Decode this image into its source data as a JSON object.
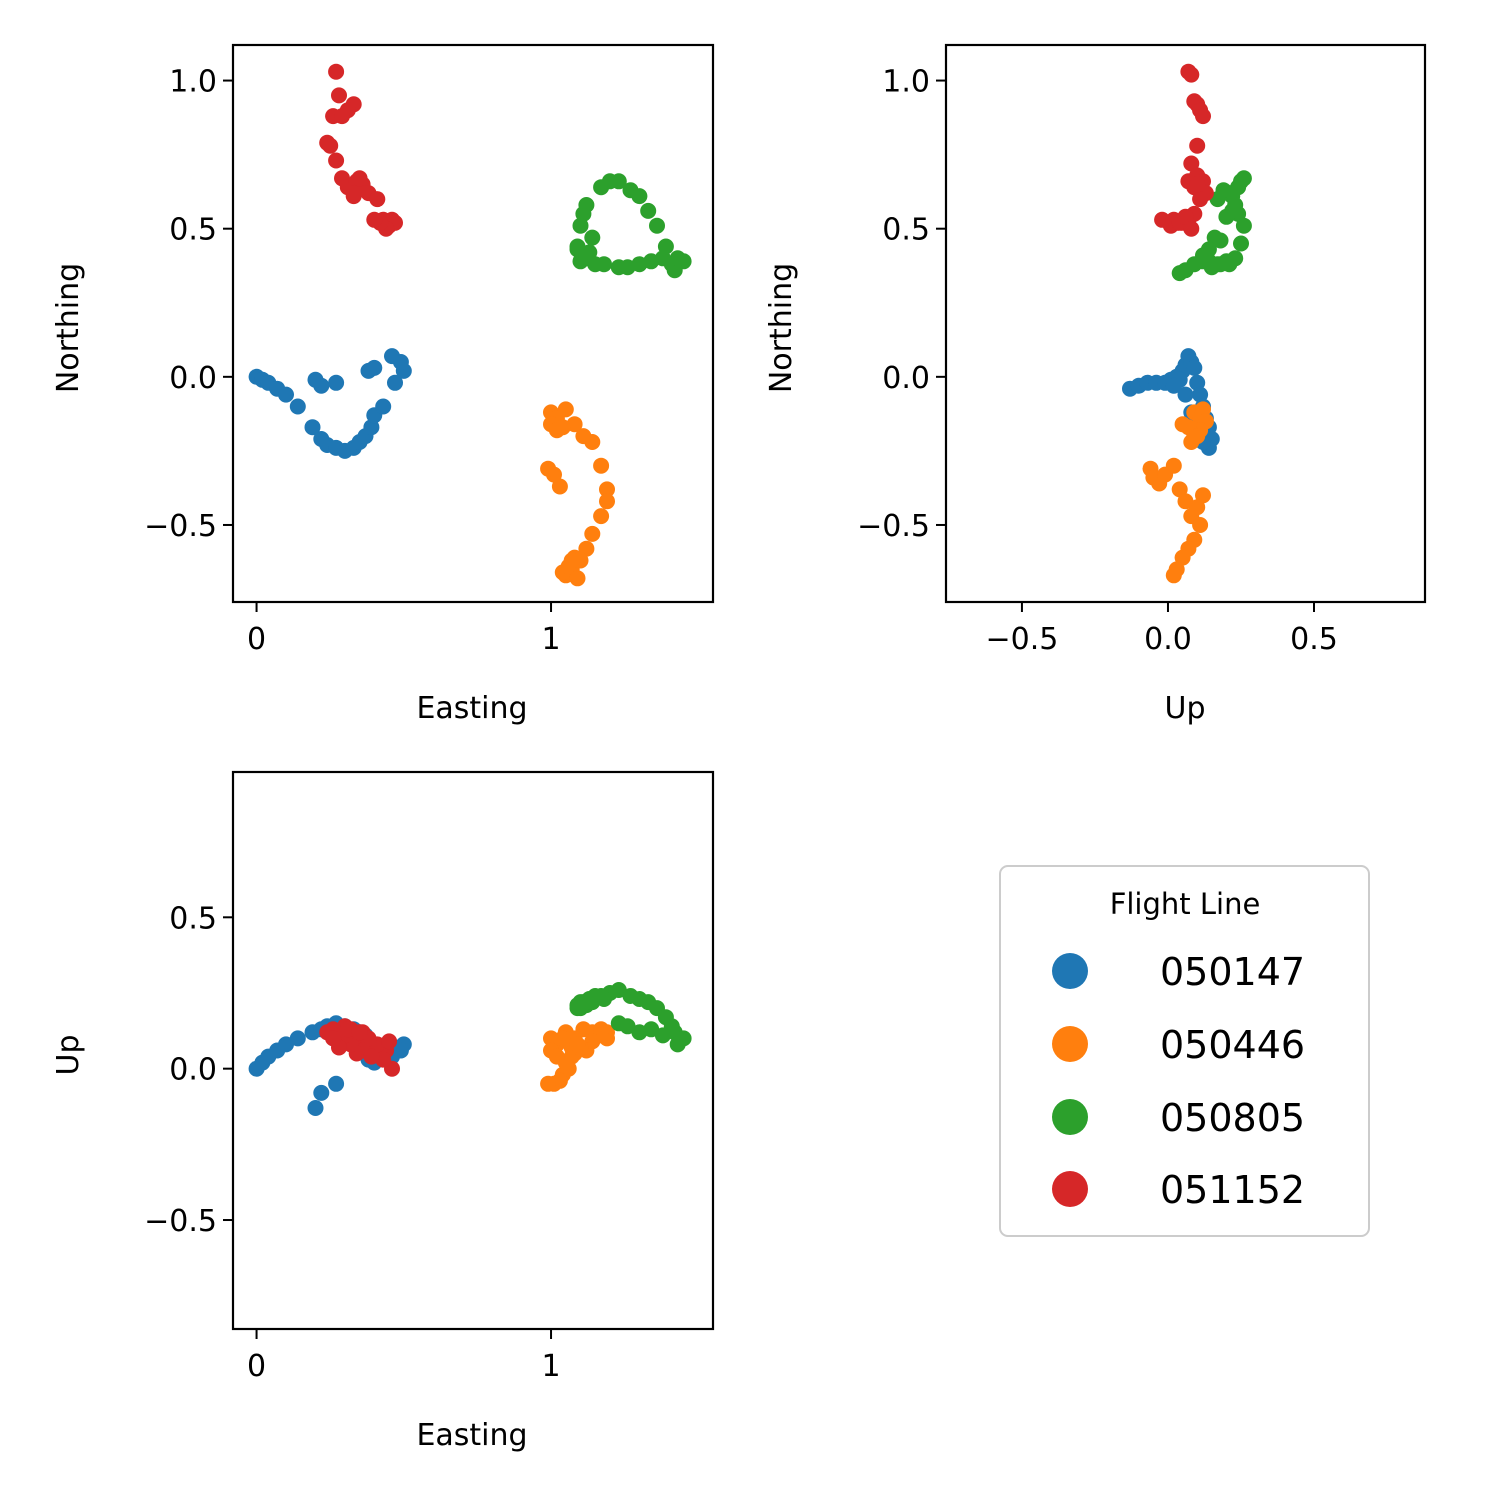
{
  "chart_data": [
    {
      "type": "scatter",
      "title": "",
      "xlabel": "Easting",
      "ylabel": "Northing",
      "xlim": [
        -0.08,
        1.55
      ],
      "ylim": [
        -0.76,
        1.12
      ],
      "xticks": [
        0,
        1
      ],
      "xtick_labels": [
        "0",
        "1"
      ],
      "yticks": [
        -0.5,
        0.0,
        0.5,
        1.0
      ],
      "ytick_labels": [
        "−0.5",
        "0.0",
        "0.5",
        "1.0"
      ],
      "grid": false,
      "series": [
        {
          "name": "050147",
          "color": "#1f77b4",
          "x": [
            0.0,
            0.02,
            0.04,
            0.07,
            0.1,
            0.14,
            0.19,
            0.22,
            0.24,
            0.27,
            0.3,
            0.33,
            0.35,
            0.37,
            0.39,
            0.4,
            0.43,
            0.47,
            0.5,
            0.49,
            0.46,
            0.4,
            0.38,
            0.27,
            0.22,
            0.2
          ],
          "y": [
            0.0,
            -0.01,
            -0.02,
            -0.04,
            -0.06,
            -0.1,
            -0.17,
            -0.21,
            -0.23,
            -0.24,
            -0.25,
            -0.24,
            -0.22,
            -0.2,
            -0.17,
            -0.13,
            -0.1,
            -0.02,
            0.02,
            0.05,
            0.07,
            0.03,
            0.02,
            -0.02,
            -0.03,
            -0.01
          ]
        },
        {
          "name": "050446",
          "color": "#ff7f0e",
          "x": [
            1.0,
            1.02,
            1.05,
            1.08,
            1.11,
            1.14,
            1.17,
            1.19,
            1.19,
            1.17,
            1.14,
            1.12,
            1.1,
            1.07,
            1.05,
            1.04,
            1.06,
            1.08,
            1.03,
            1.01,
            0.99,
            1.0,
            1.02,
            1.04,
            1.07,
            1.09
          ],
          "y": [
            -0.12,
            -0.14,
            -0.11,
            -0.16,
            -0.2,
            -0.22,
            -0.3,
            -0.38,
            -0.42,
            -0.47,
            -0.53,
            -0.58,
            -0.62,
            -0.65,
            -0.67,
            -0.66,
            -0.64,
            -0.61,
            -0.37,
            -0.33,
            -0.31,
            -0.16,
            -0.18,
            -0.17,
            -0.62,
            -0.68
          ]
        },
        {
          "name": "050805",
          "color": "#2ca02c",
          "x": [
            1.11,
            1.12,
            1.09,
            1.1,
            1.13,
            1.17,
            1.2,
            1.23,
            1.27,
            1.3,
            1.33,
            1.36,
            1.39,
            1.41,
            1.42,
            1.45,
            1.43,
            1.38,
            1.34,
            1.3,
            1.26,
            1.23,
            1.18,
            1.15,
            1.12,
            1.09,
            1.1,
            1.14
          ],
          "y": [
            0.55,
            0.58,
            0.44,
            0.39,
            0.42,
            0.64,
            0.66,
            0.66,
            0.63,
            0.61,
            0.56,
            0.51,
            0.44,
            0.38,
            0.36,
            0.39,
            0.4,
            0.4,
            0.39,
            0.38,
            0.37,
            0.37,
            0.38,
            0.38,
            0.4,
            0.43,
            0.51,
            0.47
          ]
        },
        {
          "name": "051152",
          "color": "#d62728",
          "x": [
            0.27,
            0.28,
            0.26,
            0.24,
            0.25,
            0.27,
            0.29,
            0.31,
            0.33,
            0.34,
            0.36,
            0.38,
            0.41,
            0.43,
            0.45,
            0.46,
            0.47,
            0.44,
            0.42,
            0.4,
            0.35,
            0.33,
            0.31,
            0.29,
            0.33
          ],
          "y": [
            1.03,
            0.95,
            0.88,
            0.79,
            0.78,
            0.73,
            0.67,
            0.64,
            0.61,
            0.66,
            0.65,
            0.62,
            0.6,
            0.53,
            0.51,
            0.53,
            0.52,
            0.5,
            0.52,
            0.53,
            0.67,
            0.92,
            0.9,
            0.88,
            0.62
          ]
        }
      ]
    },
    {
      "type": "scatter",
      "title": "",
      "xlabel": "Up",
      "ylabel": "Northing",
      "xlim": [
        -0.76,
        0.88
      ],
      "ylim": [
        -0.76,
        1.12
      ],
      "xticks": [
        -0.5,
        0.0,
        0.5
      ],
      "xtick_labels": [
        "−0.5",
        "0.0",
        "0.5"
      ],
      "yticks": [
        -0.5,
        0.0,
        0.5,
        1.0
      ],
      "ytick_labels": [
        "−0.5",
        "0.0",
        "0.5",
        "1.0"
      ],
      "grid": false,
      "series": [
        {
          "name": "050147",
          "color": "#1f77b4",
          "x": [
            -0.13,
            -0.1,
            -0.07,
            -0.04,
            -0.01,
            0.01,
            0.03,
            0.05,
            0.06,
            0.07,
            0.08,
            0.09,
            0.1,
            0.11,
            0.12,
            0.13,
            0.14,
            0.15,
            0.14,
            0.12,
            0.1,
            0.09,
            0.08,
            0.06,
            0.04,
            0.02
          ],
          "y": [
            -0.04,
            -0.03,
            -0.02,
            -0.02,
            -0.02,
            -0.01,
            0.0,
            0.02,
            0.04,
            0.07,
            0.05,
            0.03,
            -0.02,
            -0.06,
            -0.1,
            -0.14,
            -0.17,
            -0.21,
            -0.24,
            -0.22,
            -0.19,
            -0.15,
            -0.12,
            -0.06,
            -0.01,
            -0.03
          ]
        },
        {
          "name": "050446",
          "color": "#ff7f0e",
          "x": [
            0.09,
            0.11,
            0.12,
            0.13,
            0.11,
            0.09,
            0.07,
            0.05,
            0.08,
            0.1,
            -0.06,
            -0.05,
            -0.03,
            -0.01,
            0.02,
            0.04,
            0.06,
            0.08,
            0.1,
            0.12,
            0.11,
            0.09,
            0.07,
            0.05,
            0.03,
            0.02
          ],
          "y": [
            -0.12,
            -0.14,
            -0.11,
            -0.15,
            -0.18,
            -0.2,
            -0.17,
            -0.16,
            -0.22,
            -0.2,
            -0.31,
            -0.34,
            -0.36,
            -0.33,
            -0.3,
            -0.38,
            -0.42,
            -0.47,
            -0.44,
            -0.4,
            -0.5,
            -0.55,
            -0.58,
            -0.61,
            -0.65,
            -0.67
          ]
        },
        {
          "name": "050805",
          "color": "#2ca02c",
          "x": [
            0.04,
            0.06,
            0.09,
            0.12,
            0.15,
            0.18,
            0.21,
            0.23,
            0.25,
            0.26,
            0.24,
            0.22,
            0.2,
            0.18,
            0.16,
            0.14,
            0.12,
            0.14,
            0.17,
            0.2,
            0.22,
            0.24,
            0.25,
            0.21,
            0.19,
            0.17,
            0.23,
            0.26
          ],
          "y": [
            0.35,
            0.36,
            0.38,
            0.39,
            0.37,
            0.38,
            0.38,
            0.4,
            0.45,
            0.51,
            0.55,
            0.56,
            0.54,
            0.46,
            0.47,
            0.43,
            0.41,
            0.39,
            0.38,
            0.39,
            0.61,
            0.64,
            0.66,
            0.62,
            0.63,
            0.6,
            0.58,
            0.67
          ]
        },
        {
          "name": "051152",
          "color": "#d62728",
          "x": [
            0.07,
            0.08,
            0.09,
            0.1,
            0.11,
            0.12,
            0.1,
            0.08,
            0.07,
            0.09,
            0.1,
            0.12,
            0.13,
            0.11,
            0.09,
            0.07,
            0.05,
            0.03,
            0.01,
            -0.02,
            0.02,
            0.04,
            0.06,
            0.08,
            0.1
          ],
          "y": [
            1.03,
            1.02,
            0.93,
            0.92,
            0.9,
            0.88,
            0.78,
            0.72,
            0.66,
            0.64,
            0.68,
            0.66,
            0.62,
            0.6,
            0.55,
            0.53,
            0.52,
            0.52,
            0.51,
            0.53,
            0.53,
            0.52,
            0.54,
            0.5,
            0.65
          ]
        }
      ]
    },
    {
      "type": "scatter",
      "title": "",
      "xlabel": "Easting",
      "ylabel": "Up",
      "xlim": [
        -0.08,
        1.55
      ],
      "ylim": [
        -0.86,
        0.98
      ],
      "xticks": [
        0,
        1
      ],
      "xtick_labels": [
        "0",
        "1"
      ],
      "yticks": [
        -0.5,
        0.0,
        0.5
      ],
      "ytick_labels": [
        "−0.5",
        "0.0",
        "0.5"
      ],
      "grid": false,
      "series": [
        {
          "name": "050147",
          "color": "#1f77b4",
          "x": [
            0.0,
            0.02,
            0.04,
            0.07,
            0.1,
            0.14,
            0.19,
            0.22,
            0.24,
            0.27,
            0.3,
            0.33,
            0.35,
            0.37,
            0.39,
            0.4,
            0.43,
            0.47,
            0.5,
            0.49,
            0.46,
            0.4,
            0.38,
            0.27,
            0.22,
            0.2
          ],
          "y": [
            0.0,
            0.02,
            0.04,
            0.06,
            0.08,
            0.1,
            0.12,
            0.13,
            0.14,
            0.15,
            0.14,
            0.13,
            0.12,
            0.11,
            0.08,
            0.04,
            0.05,
            0.07,
            0.08,
            0.06,
            0.04,
            0.02,
            0.03,
            -0.05,
            -0.08,
            -0.13
          ]
        },
        {
          "name": "050446",
          "color": "#ff7f0e",
          "x": [
            1.0,
            1.02,
            1.05,
            1.08,
            1.11,
            1.14,
            1.17,
            1.19,
            1.19,
            1.17,
            1.14,
            1.12,
            1.1,
            1.07,
            1.05,
            1.04,
            1.06,
            1.08,
            1.03,
            1.01,
            0.99,
            1.0,
            1.02,
            1.04,
            1.07,
            1.09
          ],
          "y": [
            0.1,
            0.08,
            0.12,
            0.1,
            0.13,
            0.12,
            0.13,
            0.1,
            0.12,
            0.11,
            0.09,
            0.06,
            0.07,
            0.04,
            0.02,
            -0.02,
            0.0,
            0.05,
            -0.04,
            -0.05,
            -0.05,
            0.06,
            0.04,
            0.1,
            0.07,
            0.08
          ]
        },
        {
          "name": "050805",
          "color": "#2ca02c",
          "x": [
            1.11,
            1.12,
            1.09,
            1.1,
            1.13,
            1.17,
            1.2,
            1.23,
            1.27,
            1.3,
            1.33,
            1.36,
            1.39,
            1.41,
            1.42,
            1.45,
            1.43,
            1.38,
            1.34,
            1.3,
            1.26,
            1.23,
            1.18,
            1.15,
            1.12,
            1.09,
            1.1,
            1.14
          ],
          "y": [
            0.22,
            0.21,
            0.2,
            0.22,
            0.23,
            0.24,
            0.25,
            0.26,
            0.24,
            0.23,
            0.22,
            0.2,
            0.17,
            0.14,
            0.12,
            0.1,
            0.08,
            0.11,
            0.13,
            0.12,
            0.14,
            0.15,
            0.23,
            0.24,
            0.22,
            0.21,
            0.2,
            0.22
          ]
        },
        {
          "name": "051152",
          "color": "#d62728",
          "x": [
            0.24,
            0.26,
            0.28,
            0.3,
            0.32,
            0.34,
            0.36,
            0.38,
            0.4,
            0.42,
            0.44,
            0.46,
            0.43,
            0.41,
            0.38,
            0.36,
            0.34,
            0.32,
            0.3,
            0.28,
            0.26,
            0.31,
            0.35,
            0.39,
            0.45
          ],
          "y": [
            0.12,
            0.13,
            0.11,
            0.14,
            0.13,
            0.1,
            0.12,
            0.09,
            0.07,
            0.05,
            0.06,
            0.0,
            0.03,
            0.08,
            0.1,
            0.06,
            0.05,
            0.08,
            0.11,
            0.07,
            0.1,
            0.13,
            0.12,
            0.04,
            0.09
          ]
        }
      ]
    }
  ],
  "legend": {
    "title": "Flight Line",
    "placement": "bottom-right",
    "entries": [
      {
        "label": "050147",
        "color": "#1f77b4"
      },
      {
        "label": "050446",
        "color": "#ff7f0e"
      },
      {
        "label": "050805",
        "color": "#2ca02c"
      },
      {
        "label": "051152",
        "color": "#d62728"
      }
    ]
  }
}
